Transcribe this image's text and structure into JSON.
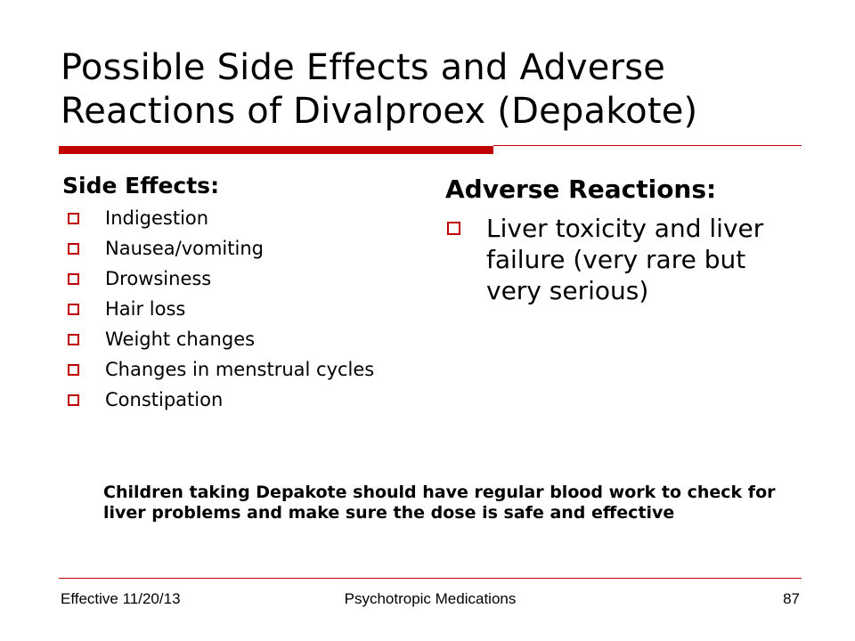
{
  "colors": {
    "accent": "#c00000",
    "text": "#000000",
    "background": "#ffffff"
  },
  "slide": {
    "title": "Possible Side Effects and Adverse Reactions of Divalproex (Depakote)"
  },
  "side_effects": {
    "heading": "Side Effects:",
    "bullet_icon": "square-outline-bullet-icon",
    "items": [
      "Indigestion",
      "Nausea/vomiting",
      "Drowsiness",
      "Hair loss",
      "Weight changes",
      "Changes in menstrual cycles",
      "Constipation"
    ]
  },
  "adverse_reactions": {
    "heading": "Adverse Reactions:",
    "items": [
      "Liver toxicity and liver failure (very rare but very serious)"
    ]
  },
  "note": {
    "text": "Children taking Depakote should have regular blood work to check for liver problems and make sure the dose is safe and effective"
  },
  "footer": {
    "left": "Effective 11/20/13",
    "center": "Psychotropic Medications",
    "page_number": "87"
  }
}
